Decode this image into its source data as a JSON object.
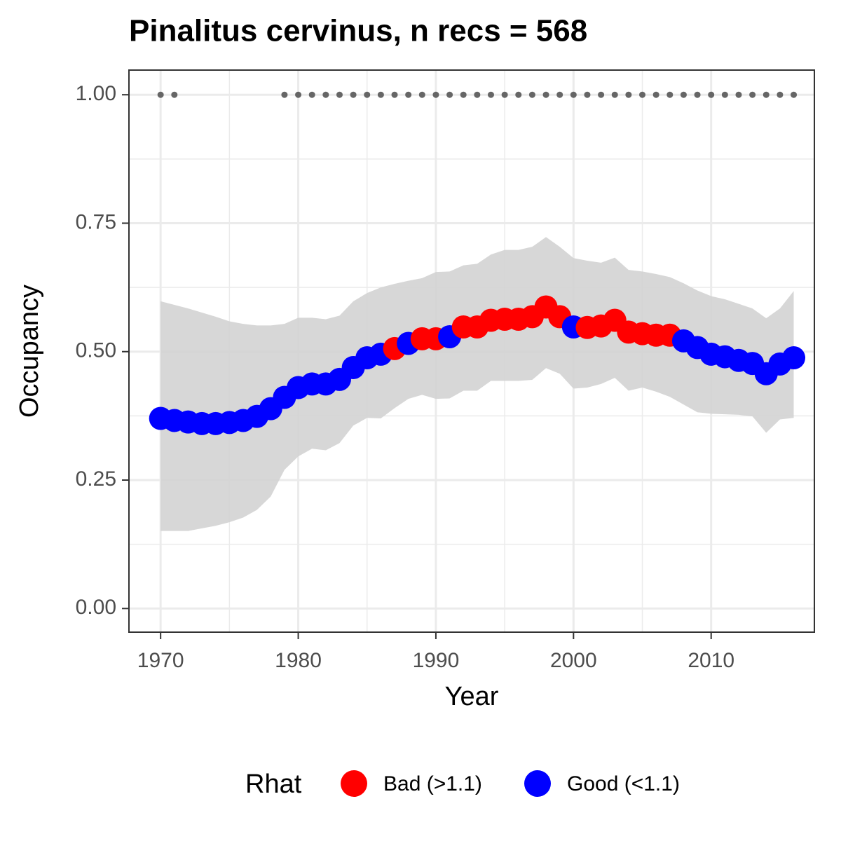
{
  "chart_data": {
    "type": "line",
    "title": "Pinalitus cervinus, n recs = 568",
    "x_label": "Year",
    "y_label": "Occupancy",
    "xlim": [
      1967.7,
      2017.5
    ],
    "ylim": [
      -0.046,
      1.048
    ],
    "xticks": [
      1970,
      1980,
      1990,
      2000,
      2010
    ],
    "yticks": [
      {
        "value": 0,
        "label": "0.00"
      },
      {
        "value": 0.25,
        "label": "0.25"
      },
      {
        "value": 0.5,
        "label": "0.50"
      },
      {
        "value": 0.75,
        "label": "0.75"
      },
      {
        "value": 1,
        "label": "1.00"
      }
    ],
    "grid": true,
    "ribbon_color": "#d3d3d3",
    "x": [
      1970,
      1971,
      1972,
      1973,
      1974,
      1975,
      1976,
      1977,
      1978,
      1979,
      1980,
      1981,
      1982,
      1983,
      1984,
      1985,
      1986,
      1987,
      1988,
      1989,
      1990,
      1991,
      1992,
      1993,
      1994,
      1995,
      1996,
      1997,
      1998,
      1999,
      2000,
      2001,
      2002,
      2003,
      2004,
      2005,
      2006,
      2007,
      2008,
      2009,
      2010,
      2011,
      2012,
      2013,
      2014,
      2015,
      2016
    ],
    "values": [
      0.37,
      0.366,
      0.363,
      0.36,
      0.36,
      0.362,
      0.366,
      0.374,
      0.389,
      0.411,
      0.43,
      0.437,
      0.437,
      0.446,
      0.469,
      0.488,
      0.495,
      0.506,
      0.516,
      0.525,
      0.525,
      0.529,
      0.548,
      0.548,
      0.561,
      0.563,
      0.563,
      0.568,
      0.587,
      0.568,
      0.548,
      0.547,
      0.55,
      0.561,
      0.538,
      0.535,
      0.532,
      0.532,
      0.521,
      0.508,
      0.495,
      0.49,
      0.483,
      0.477,
      0.457,
      0.476,
      0.488
    ],
    "ci_upper": [
      0.598,
      0.591,
      0.584,
      0.576,
      0.568,
      0.559,
      0.554,
      0.551,
      0.551,
      0.554,
      0.566,
      0.566,
      0.563,
      0.57,
      0.598,
      0.614,
      0.625,
      0.632,
      0.638,
      0.643,
      0.655,
      0.656,
      0.668,
      0.671,
      0.689,
      0.698,
      0.698,
      0.704,
      0.723,
      0.704,
      0.682,
      0.677,
      0.673,
      0.683,
      0.659,
      0.656,
      0.651,
      0.645,
      0.633,
      0.619,
      0.608,
      0.602,
      0.593,
      0.584,
      0.565,
      0.584,
      0.618
    ],
    "ci_lower": [
      0.151,
      0.151,
      0.151,
      0.156,
      0.161,
      0.168,
      0.177,
      0.192,
      0.218,
      0.27,
      0.296,
      0.311,
      0.308,
      0.322,
      0.356,
      0.371,
      0.37,
      0.39,
      0.408,
      0.416,
      0.408,
      0.409,
      0.424,
      0.424,
      0.443,
      0.443,
      0.443,
      0.445,
      0.468,
      0.457,
      0.428,
      0.43,
      0.437,
      0.449,
      0.424,
      0.43,
      0.422,
      0.412,
      0.397,
      0.382,
      0.379,
      0.378,
      0.377,
      0.374,
      0.342,
      0.368,
      0.371
    ],
    "rhat": [
      "Good (<1.1)",
      "Good (<1.1)",
      "Good (<1.1)",
      "Good (<1.1)",
      "Good (<1.1)",
      "Good (<1.1)",
      "Good (<1.1)",
      "Good (<1.1)",
      "Good (<1.1)",
      "Good (<1.1)",
      "Good (<1.1)",
      "Good (<1.1)",
      "Good (<1.1)",
      "Good (<1.1)",
      "Good (<1.1)",
      "Good (<1.1)",
      "Good (<1.1)",
      "Bad (>1.1)",
      "Good (<1.1)",
      "Bad (>1.1)",
      "Bad (>1.1)",
      "Good (<1.1)",
      "Bad (>1.1)",
      "Bad (>1.1)",
      "Bad (>1.1)",
      "Bad (>1.1)",
      "Bad (>1.1)",
      "Bad (>1.1)",
      "Bad (>1.1)",
      "Bad (>1.1)",
      "Good (<1.1)",
      "Bad (>1.1)",
      "Bad (>1.1)",
      "Bad (>1.1)",
      "Bad (>1.1)",
      "Bad (>1.1)",
      "Bad (>1.1)",
      "Bad (>1.1)",
      "Good (<1.1)",
      "Good (<1.1)",
      "Good (<1.1)",
      "Good (<1.1)",
      "Good (<1.1)",
      "Good (<1.1)",
      "Good (<1.1)",
      "Good (<1.1)",
      "Good (<1.1)"
    ],
    "records": {
      "color": "#666666",
      "x": [
        1970,
        1971,
        1979,
        1980,
        1981,
        1982,
        1983,
        1984,
        1985,
        1986,
        1987,
        1988,
        1989,
        1990,
        1991,
        1992,
        1993,
        1994,
        1995,
        1996,
        1997,
        1998,
        1999,
        2000,
        2001,
        2002,
        2003,
        2004,
        2005,
        2006,
        2007,
        2008,
        2009,
        2010,
        2011,
        2012,
        2013,
        2014,
        2015,
        2016
      ],
      "y": [
        1,
        1,
        1,
        1,
        1,
        1,
        1,
        1,
        1,
        1,
        1,
        1,
        1,
        1,
        1,
        1,
        1,
        1,
        1,
        1,
        1,
        1,
        1,
        1,
        1,
        1,
        1,
        1,
        1,
        1,
        1,
        1,
        1,
        1,
        1,
        1,
        1,
        1,
        1,
        1
      ]
    },
    "legend": {
      "title": "Rhat",
      "items": [
        {
          "name": "Bad (>1.1)",
          "color": "#ff0000"
        },
        {
          "name": "Good (<1.1)",
          "color": "#0000ff"
        }
      ]
    }
  }
}
